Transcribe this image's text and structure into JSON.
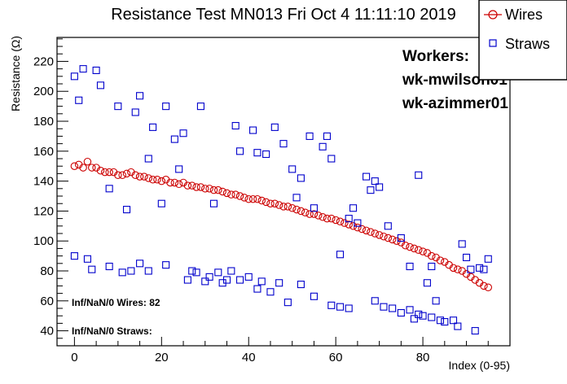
{
  "colors": {
    "wires": "#cc0000",
    "straws": "#0000cc",
    "axis": "#000000",
    "background": "#ffffff"
  },
  "chart_data": {
    "type": "scatter",
    "title": "Resistance Test MN013 Fri Oct  4 11:11:10 2019",
    "xlabel": "Index (0-95)",
    "ylabel": "Resistance (Ω)",
    "xlim": [
      -4,
      100
    ],
    "ylim": [
      30,
      236
    ],
    "grid": false,
    "legend_position": "top-right",
    "x_ticks": [
      0,
      20,
      40,
      60,
      80
    ],
    "y_ticks": [
      40,
      60,
      80,
      100,
      120,
      140,
      160,
      180,
      200,
      220
    ],
    "legend": [
      {
        "name": "Wires",
        "marker": "circle",
        "color": "#cc0000"
      },
      {
        "name": "Straws",
        "marker": "square",
        "color": "#0000cc"
      }
    ],
    "series": [
      {
        "name": "Wires",
        "marker": "circle",
        "color": "#cc0000",
        "x": [
          0,
          1,
          2,
          3,
          4,
          5,
          6,
          7,
          8,
          9,
          10,
          11,
          12,
          13,
          14,
          15,
          16,
          17,
          18,
          19,
          20,
          21,
          22,
          23,
          24,
          25,
          26,
          27,
          28,
          29,
          30,
          31,
          32,
          33,
          34,
          35,
          36,
          37,
          38,
          39,
          40,
          41,
          42,
          43,
          44,
          45,
          46,
          47,
          48,
          49,
          50,
          51,
          52,
          53,
          54,
          55,
          56,
          57,
          58,
          59,
          60,
          61,
          62,
          63,
          64,
          65,
          66,
          67,
          68,
          69,
          70,
          71,
          72,
          73,
          74,
          75,
          76,
          77,
          78,
          79,
          80,
          81,
          82,
          83,
          84,
          85,
          86,
          87,
          88,
          89,
          90,
          91,
          92,
          93,
          94,
          95
        ],
        "y": [
          150,
          151,
          149,
          153,
          149,
          149,
          147,
          146,
          146,
          146,
          144,
          144,
          145,
          146,
          144,
          143,
          143,
          142,
          141,
          141,
          140,
          141,
          139,
          139,
          138,
          139,
          137,
          137,
          136,
          136,
          135,
          135,
          134,
          134,
          133,
          132,
          131,
          131,
          130,
          129,
          128,
          128,
          128,
          127,
          126,
          125,
          125,
          124,
          123,
          123,
          122,
          121,
          120,
          119,
          118,
          118,
          117,
          116,
          115,
          115,
          114,
          113,
          112,
          111,
          110,
          109,
          108,
          107,
          106,
          105,
          104,
          103,
          102,
          101,
          100,
          99,
          97,
          96,
          95,
          94,
          93,
          92,
          90,
          89,
          87,
          86,
          84,
          82,
          81,
          80,
          78,
          76,
          74,
          72,
          70,
          69
        ]
      },
      {
        "name": "Straws",
        "marker": "square",
        "color": "#0000cc",
        "points": [
          [
            0,
            210
          ],
          [
            1,
            194
          ],
          [
            2,
            215
          ],
          [
            5,
            214
          ],
          [
            6,
            204
          ],
          [
            8,
            135
          ],
          [
            10,
            190
          ],
          [
            12,
            121
          ],
          [
            14,
            186
          ],
          [
            15,
            197
          ],
          [
            17,
            155
          ],
          [
            18,
            176
          ],
          [
            20,
            125
          ],
          [
            21,
            190
          ],
          [
            23,
            168
          ],
          [
            24,
            148
          ],
          [
            25,
            172
          ],
          [
            29,
            190
          ],
          [
            32,
            125
          ],
          [
            37,
            177
          ],
          [
            38,
            160
          ],
          [
            41,
            174
          ],
          [
            42,
            159
          ],
          [
            44,
            158
          ],
          [
            46,
            176
          ],
          [
            48,
            165
          ],
          [
            50,
            148
          ],
          [
            51,
            129
          ],
          [
            52,
            142
          ],
          [
            54,
            170
          ],
          [
            55,
            122
          ],
          [
            57,
            163
          ],
          [
            58,
            170
          ],
          [
            59,
            155
          ],
          [
            61,
            91
          ],
          [
            63,
            115
          ],
          [
            64,
            122
          ],
          [
            65,
            112
          ],
          [
            67,
            143
          ],
          [
            68,
            134
          ],
          [
            69,
            140
          ],
          [
            70,
            136
          ],
          [
            72,
            110
          ],
          [
            75,
            102
          ],
          [
            77,
            83
          ],
          [
            79,
            144
          ],
          [
            81,
            72
          ],
          [
            82,
            83
          ],
          [
            83,
            60
          ],
          [
            0,
            90
          ],
          [
            3,
            88
          ],
          [
            4,
            81
          ],
          [
            8,
            83
          ],
          [
            11,
            79
          ],
          [
            13,
            80
          ],
          [
            15,
            85
          ],
          [
            17,
            80
          ],
          [
            21,
            84
          ],
          [
            26,
            74
          ],
          [
            27,
            80
          ],
          [
            28,
            79
          ],
          [
            30,
            73
          ],
          [
            31,
            76
          ],
          [
            33,
            79
          ],
          [
            34,
            72
          ],
          [
            35,
            74
          ],
          [
            36,
            80
          ],
          [
            38,
            74
          ],
          [
            40,
            76
          ],
          [
            42,
            68
          ],
          [
            43,
            73
          ],
          [
            45,
            66
          ],
          [
            47,
            72
          ],
          [
            49,
            59
          ],
          [
            52,
            71
          ],
          [
            55,
            63
          ],
          [
            59,
            57
          ],
          [
            61,
            56
          ],
          [
            63,
            55
          ],
          [
            69,
            60
          ],
          [
            71,
            56
          ],
          [
            73,
            55
          ],
          [
            75,
            52
          ],
          [
            77,
            54
          ],
          [
            78,
            48
          ],
          [
            79,
            51
          ],
          [
            80,
            50
          ],
          [
            82,
            49
          ],
          [
            84,
            47
          ],
          [
            85,
            46
          ],
          [
            87,
            47
          ],
          [
            88,
            43
          ],
          [
            89,
            98
          ],
          [
            90,
            89
          ],
          [
            91,
            81
          ],
          [
            92,
            40
          ],
          [
            93,
            82
          ],
          [
            94,
            81
          ],
          [
            95,
            88
          ]
        ]
      }
    ],
    "annotations": [
      "Workers:",
      "wk-mwilson01",
      "wk-azimmer01",
      "Inf/NaN/0 Wires: 82",
      "Inf/NaN/0 Straws:"
    ]
  }
}
